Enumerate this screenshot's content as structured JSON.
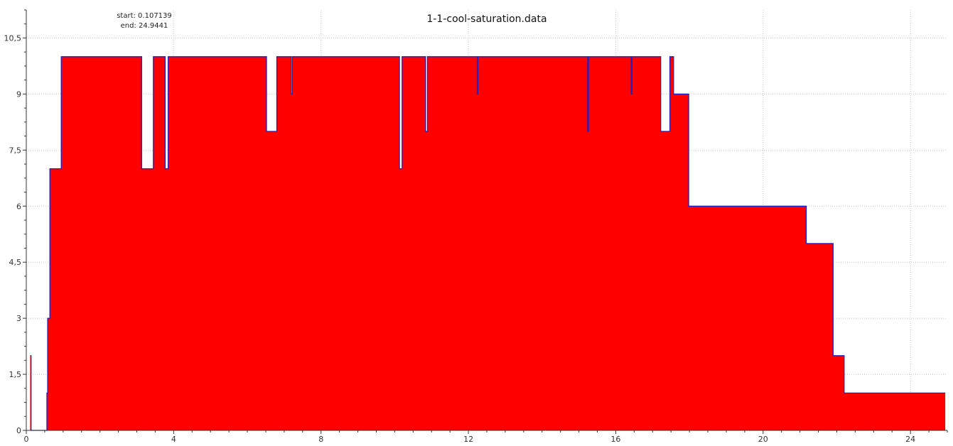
{
  "chart_data": {
    "type": "area",
    "title": "1-1-cool-saturation.data",
    "range_start": "start: 0.107139",
    "range_end": "end: 24.9441",
    "xlim": [
      0,
      25
    ],
    "ylim": [
      0,
      11.25
    ],
    "x_ticks": [
      0,
      4,
      8,
      12,
      16,
      20,
      24
    ],
    "x_tick_labels": [
      "0",
      "4",
      "8",
      "12",
      "16",
      "20",
      "24"
    ],
    "y_ticks": [
      0,
      1.5,
      3,
      4.5,
      6,
      7.5,
      9,
      10.5
    ],
    "y_tick_labels": [
      "0",
      "1,5",
      "3",
      "4,5",
      "6",
      "7,5",
      "9",
      "10,5"
    ],
    "grid": true,
    "fill_color": "#ff0000",
    "line_color": "#2020c0",
    "series": [
      {
        "x": [
          0.107,
          0.13,
          0.53,
          0.56,
          0.58,
          0.62,
          0.64,
          0.92,
          0.95,
          3.08,
          3.13,
          3.4,
          3.45,
          3.72,
          3.77,
          3.8,
          3.85,
          6.47,
          6.52,
          6.75,
          6.8,
          7.17,
          7.19,
          7.22,
          10.1,
          10.13,
          10.17,
          10.2,
          10.82,
          10.84,
          10.87,
          10.89,
          12.22,
          12.24,
          12.26,
          15.22,
          15.24,
          15.26,
          16.4,
          16.42,
          16.44,
          17.17,
          17.22,
          17.42,
          17.47,
          17.52,
          17.57,
          17.93,
          17.98,
          21.12,
          21.17,
          21.85,
          21.9,
          22.15,
          22.2,
          24.944
        ],
        "y": [
          2,
          0,
          0,
          1,
          3,
          3,
          7,
          7,
          10,
          10,
          7,
          7,
          10,
          10,
          7,
          7,
          10,
          10,
          8,
          8,
          10,
          10,
          9,
          10,
          10,
          7,
          7,
          10,
          10,
          8,
          8,
          10,
          10,
          9,
          10,
          10,
          8,
          10,
          10,
          9,
          10,
          10,
          8,
          8,
          10,
          10,
          9,
          9,
          6,
          6,
          5,
          5,
          2,
          2,
          1,
          1
        ]
      }
    ]
  }
}
